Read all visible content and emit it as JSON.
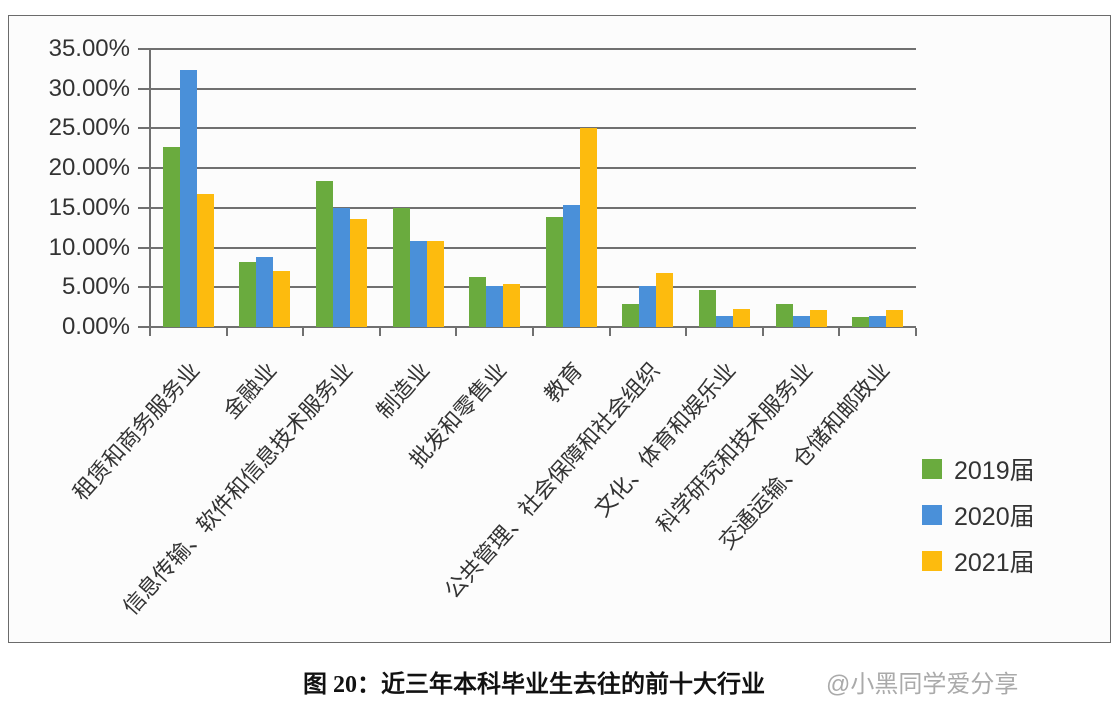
{
  "chart_data": {
    "type": "bar",
    "title": "",
    "xlabel": "",
    "ylabel": "",
    "ylim": [
      0,
      35
    ],
    "y_ticks": [
      "0.00%",
      "5.00%",
      "10.00%",
      "15.00%",
      "20.00%",
      "25.00%",
      "30.00%",
      "35.00%"
    ],
    "grid": true,
    "legend_position": "right",
    "categories": [
      "租赁和商务服务业",
      "金融业",
      "信息传输、软件和信息技术服务业",
      "制造业",
      "批发和零售业",
      "教育",
      "公共管理、社会保障和社会组织",
      "文化、体育和娱乐业",
      "科学研究和技术服务业",
      "交通运输、仓储和邮政业"
    ],
    "series": [
      {
        "name": "2019届",
        "color": "#6aab3e",
        "values": [
          22.6,
          8.2,
          18.4,
          15.0,
          6.3,
          13.9,
          2.9,
          4.6,
          2.9,
          1.2
        ]
      },
      {
        "name": "2020届",
        "color": "#4a90d9",
        "values": [
          32.3,
          8.8,
          15.0,
          10.8,
          5.1,
          15.3,
          5.1,
          1.4,
          1.4,
          1.4
        ]
      },
      {
        "name": "2021届",
        "color": "#fdbb0e",
        "values": [
          16.7,
          7.1,
          13.6,
          10.8,
          5.4,
          25.0,
          6.8,
          2.3,
          2.1,
          2.1
        ]
      }
    ]
  },
  "caption": "图 20：近三年本科毕业生去往的前十大行业",
  "watermark": "@小黑同学爱分享"
}
